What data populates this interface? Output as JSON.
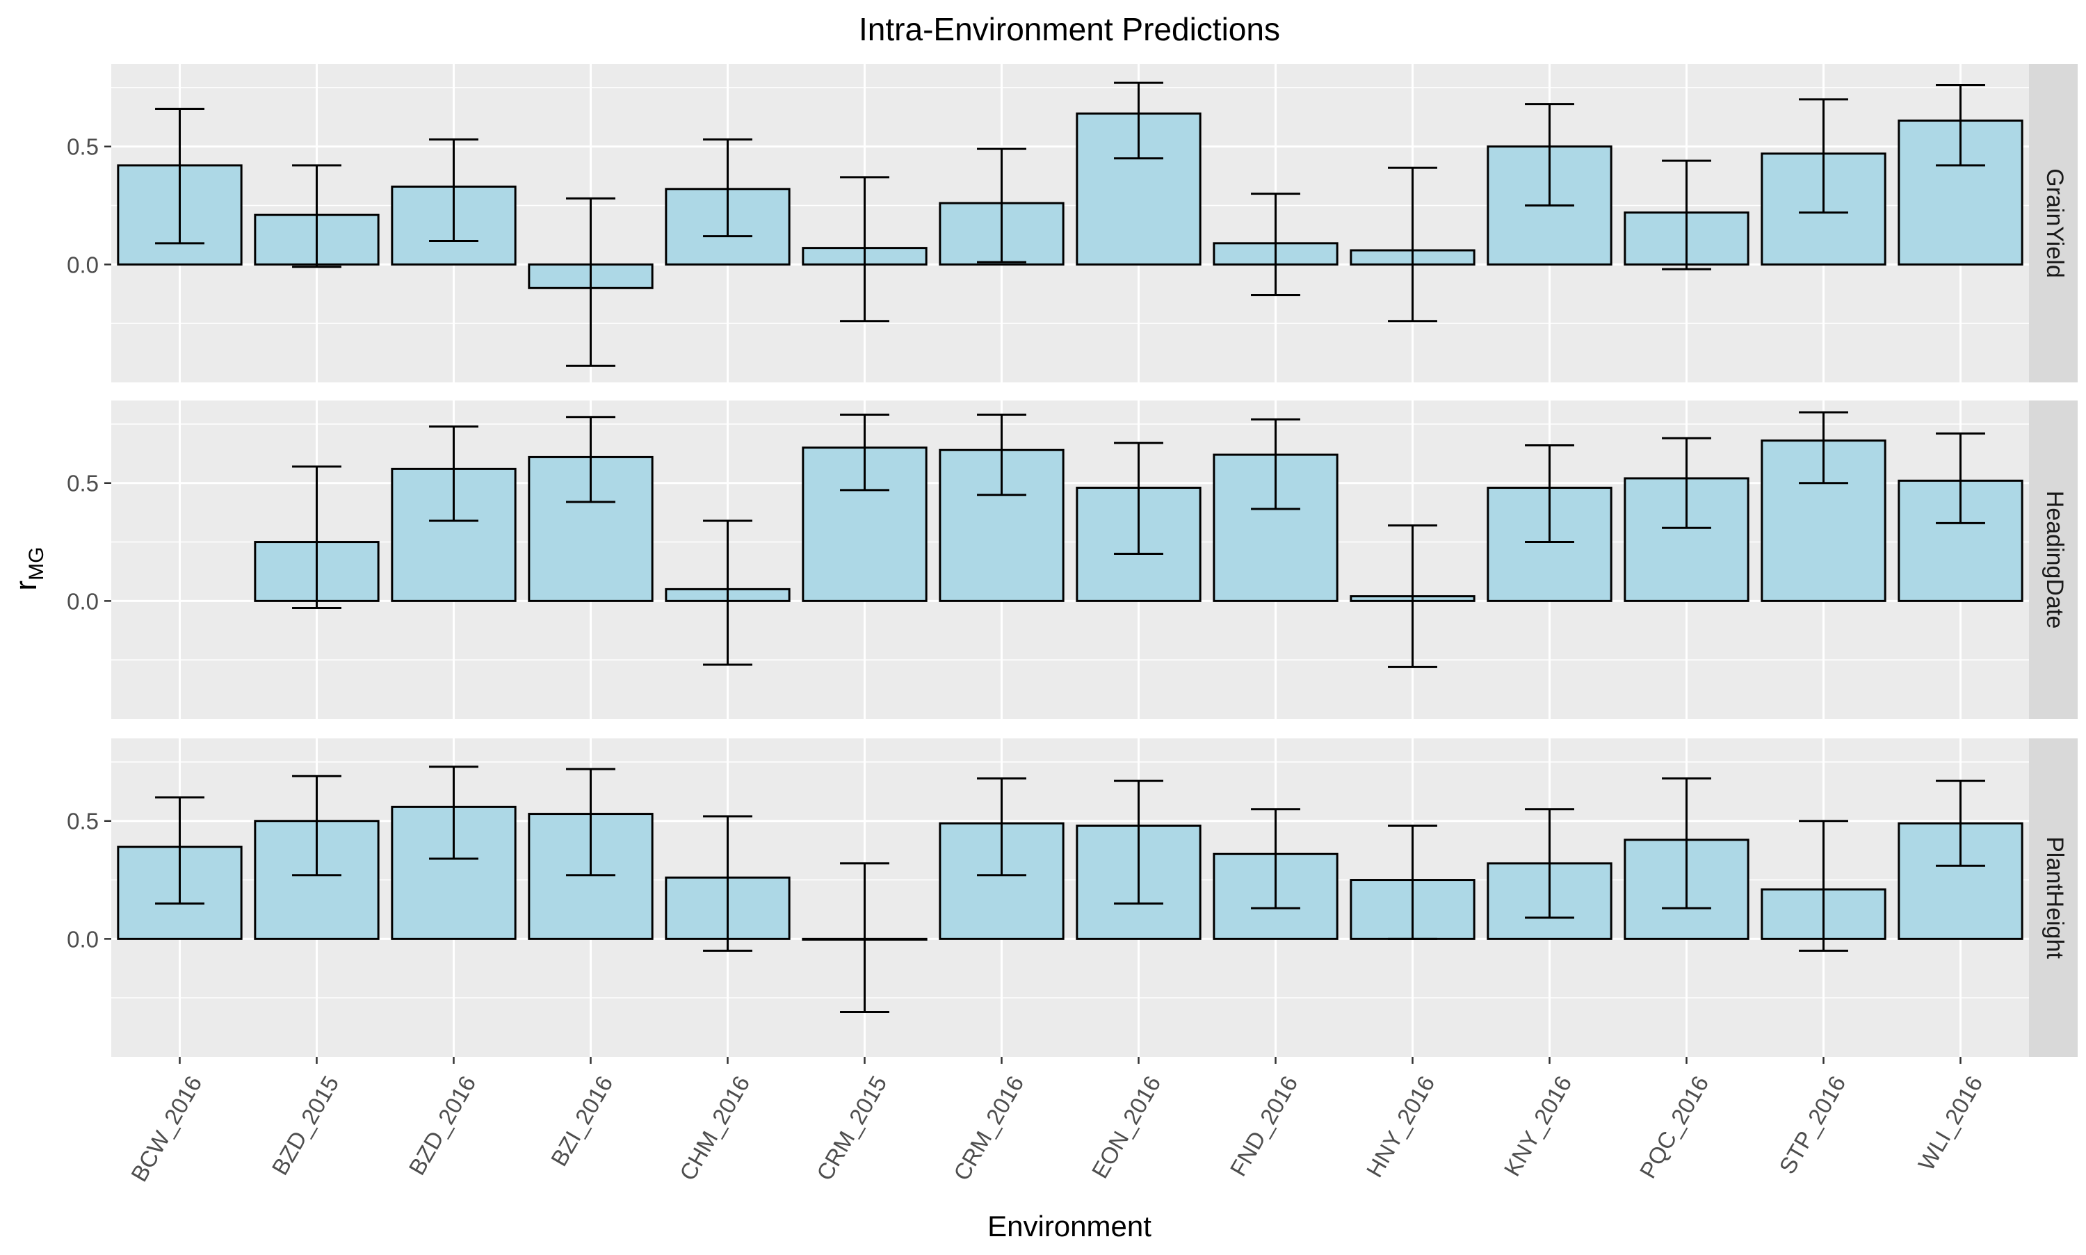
{
  "chart_data": {
    "type": "bar",
    "title": "Intra-Environment Predictions",
    "xlabel": "Environment",
    "ylabel_main": "r",
    "ylabel_sub": "MG",
    "ylim": [
      -0.5,
      0.85
    ],
    "yticks": [
      0.0,
      0.5
    ],
    "ytick_labels": [
      "0.0",
      "0.5"
    ],
    "minor_grid": [
      -0.25,
      0.25,
      0.75
    ],
    "grid": true,
    "colors": {
      "panel_bg": "#ebebeb",
      "strip_bg": "#d9d9d9",
      "bar_fill": "#add8e6",
      "bar_stroke": "#000000",
      "grid": "#ffffff",
      "text": "#000000",
      "axis_text": "#4d4d4d"
    },
    "categories": [
      "BCW_2016",
      "BZD_2015",
      "BZD_2016",
      "BZI_2016",
      "CHM_2016",
      "CRM_2015",
      "CRM_2016",
      "EON_2016",
      "FND_2016",
      "HNY_2016",
      "KNY_2016",
      "PQC_2016",
      "STP_2016",
      "WLI_2016"
    ],
    "panels": [
      {
        "name": "GrainYield",
        "values": [
          0.42,
          0.21,
          0.33,
          -0.1,
          0.32,
          0.07,
          0.26,
          0.64,
          0.09,
          0.06,
          0.5,
          0.22,
          0.47,
          0.61
        ],
        "err_low": [
          0.09,
          -0.01,
          0.1,
          -0.43,
          0.12,
          -0.24,
          0.01,
          0.45,
          -0.13,
          -0.24,
          0.25,
          -0.02,
          0.22,
          0.42
        ],
        "err_high": [
          0.66,
          0.42,
          0.53,
          0.28,
          0.53,
          0.37,
          0.49,
          0.77,
          0.3,
          0.41,
          0.68,
          0.44,
          0.7,
          0.76
        ]
      },
      {
        "name": "HeadingDate",
        "values": [
          null,
          0.25,
          0.56,
          0.61,
          0.05,
          0.65,
          0.64,
          0.48,
          0.62,
          0.02,
          0.48,
          0.52,
          0.68,
          0.51
        ],
        "err_low": [
          null,
          -0.03,
          0.34,
          0.42,
          -0.27,
          0.47,
          0.45,
          0.2,
          0.39,
          -0.28,
          0.25,
          0.31,
          0.5,
          0.33
        ],
        "err_high": [
          null,
          0.57,
          0.74,
          0.78,
          0.34,
          0.79,
          0.79,
          0.67,
          0.77,
          0.32,
          0.66,
          0.69,
          0.8,
          0.71
        ]
      },
      {
        "name": "PlantHeight",
        "values": [
          0.39,
          0.5,
          0.56,
          0.53,
          0.26,
          0.0,
          0.49,
          0.48,
          0.36,
          0.25,
          0.32,
          0.42,
          0.21,
          0.49
        ],
        "err_low": [
          0.15,
          0.27,
          0.34,
          0.27,
          -0.05,
          -0.31,
          0.27,
          0.15,
          0.13,
          0.0,
          0.09,
          0.13,
          -0.05,
          0.31
        ],
        "err_high": [
          0.6,
          0.69,
          0.73,
          0.72,
          0.52,
          0.32,
          0.68,
          0.67,
          0.55,
          0.48,
          0.55,
          0.68,
          0.5,
          0.67
        ]
      }
    ]
  }
}
